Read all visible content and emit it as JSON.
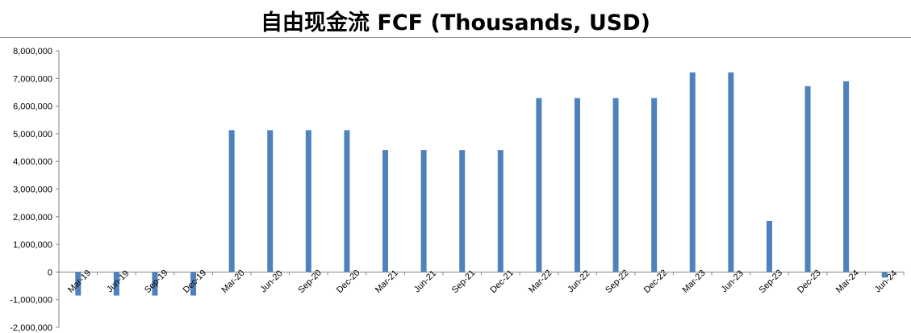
{
  "chart_data": {
    "type": "bar",
    "title": "自由现金流 FCF (Thousands, USD)",
    "xlabel": "",
    "ylabel": "",
    "ylim": [
      -2000000,
      8000000
    ],
    "yticks": [
      -2000000,
      -1000000,
      0,
      1000000,
      2000000,
      3000000,
      4000000,
      5000000,
      6000000,
      7000000,
      8000000
    ],
    "ytick_labels": [
      "-2,000,000",
      "-1,000,000",
      "0",
      "1,000,000",
      "2,000,000",
      "3,000,000",
      "4,000,000",
      "5,000,000",
      "6,000,000",
      "7,000,000",
      "8,000,000"
    ],
    "grid": false,
    "legend": "none",
    "bar_color": "#4f81bd",
    "categories": [
      "Mar-19",
      "Jun-19",
      "Sep-19",
      "Dec-19",
      "Mar-20",
      "Jun-20",
      "Sep-20",
      "Dec-20",
      "Mar-21",
      "Jun-21",
      "Sep-21",
      "Dec-21",
      "Mar-22",
      "Jun-22",
      "Sep-22",
      "Dec-22",
      "Mar-23",
      "Jun-23",
      "Sep-23",
      "Dec-23",
      "Mar-24",
      "Jun-24"
    ],
    "values": [
      -850000,
      -850000,
      -850000,
      -850000,
      5130000,
      5130000,
      5130000,
      5130000,
      4410000,
      4410000,
      4410000,
      4410000,
      6290000,
      6290000,
      6290000,
      6290000,
      7220000,
      7220000,
      1850000,
      6720000,
      6900000,
      -200000
    ]
  }
}
